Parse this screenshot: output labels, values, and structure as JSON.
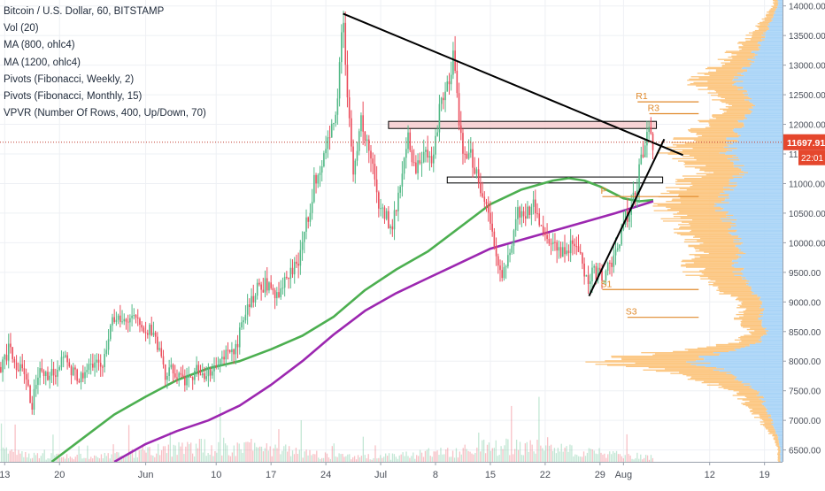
{
  "chart_data": {
    "type": "line",
    "title": "Bitcoin / U.S. Dollar, 60, BITSTAMP",
    "indicators": [
      "Vol (20)",
      "MA (800, ohlc4)",
      "MA (1200, ohlc4)",
      "Pivots (Fibonacci, Weekly, 2)",
      "Pivots (Fibonacci, Monthly, 15)",
      "VPVR (Number Of Rows, 400, Up/Down, 70)"
    ],
    "x_tick_labels": [
      {
        "label": "13",
        "day": -18
      },
      {
        "label": "20",
        "day": -11
      },
      {
        "label": "Jun",
        "day": 0
      },
      {
        "label": "10",
        "day": 9
      },
      {
        "label": "17",
        "day": 16
      },
      {
        "label": "24",
        "day": 23
      },
      {
        "label": "Jul",
        "day": 30
      },
      {
        "label": "8",
        "day": 37
      },
      {
        "label": "15",
        "day": 44
      },
      {
        "label": "22",
        "day": 51
      },
      {
        "label": "29",
        "day": 58
      },
      {
        "label": "Aug",
        "day": 61
      },
      {
        "label": "12",
        "day": 72
      },
      {
        "label": "19",
        "day": 79
      }
    ],
    "y_ticks": [
      6500,
      7000,
      7500,
      8000,
      8500,
      9000,
      9500,
      10000,
      10500,
      11000,
      11500,
      12000,
      12500,
      13000,
      13500,
      14000
    ],
    "ylim": [
      6300,
      14100
    ],
    "xlim_days": [
      -18.6,
      81.3
    ],
    "grid": true,
    "last_price": "11697.91",
    "countdown": "22:01",
    "price_series": [
      {
        "day": -18.5,
        "value": 7900
      },
      {
        "day": -17.5,
        "value": 8200
      },
      {
        "day": -16.5,
        "value": 7950
      },
      {
        "day": -15.5,
        "value": 7800
      },
      {
        "day": -14.5,
        "value": 7250
      },
      {
        "day": -13.5,
        "value": 7950
      },
      {
        "day": -12.5,
        "value": 7700
      },
      {
        "day": -11.5,
        "value": 7850
      },
      {
        "day": -10.5,
        "value": 8050
      },
      {
        "day": -9.5,
        "value": 7800
      },
      {
        "day": -8.5,
        "value": 7700
      },
      {
        "day": -7.5,
        "value": 7950
      },
      {
        "day": -6.5,
        "value": 8000
      },
      {
        "day": -5.5,
        "value": 7900
      },
      {
        "day": -4.5,
        "value": 8700
      },
      {
        "day": -3.5,
        "value": 8750
      },
      {
        "day": -2.5,
        "value": 8650
      },
      {
        "day": -1.5,
        "value": 8700
      },
      {
        "day": -0.5,
        "value": 8550
      },
      {
        "day": 0.5,
        "value": 8550
      },
      {
        "day": 1.5,
        "value": 8200
      },
      {
        "day": 2.5,
        "value": 7800
      },
      {
        "day": 3.5,
        "value": 7900
      },
      {
        "day": 4.5,
        "value": 7650
      },
      {
        "day": 5.5,
        "value": 7700
      },
      {
        "day": 6.5,
        "value": 7900
      },
      {
        "day": 7.5,
        "value": 7750
      },
      {
        "day": 8.5,
        "value": 7850
      },
      {
        "day": 9.5,
        "value": 8000
      },
      {
        "day": 10.5,
        "value": 8100
      },
      {
        "day": 11.5,
        "value": 8200
      },
      {
        "day": 12.5,
        "value": 8700
      },
      {
        "day": 13.5,
        "value": 9000
      },
      {
        "day": 14.5,
        "value": 9250
      },
      {
        "day": 15.5,
        "value": 9300
      },
      {
        "day": 16.5,
        "value": 9100
      },
      {
        "day": 17.5,
        "value": 9300
      },
      {
        "day": 18.5,
        "value": 9450
      },
      {
        "day": 19.5,
        "value": 9750
      },
      {
        "day": 20.5,
        "value": 10300
      },
      {
        "day": 21.5,
        "value": 11000
      },
      {
        "day": 22.5,
        "value": 11300
      },
      {
        "day": 23.5,
        "value": 11800
      },
      {
        "day": 24.5,
        "value": 12500
      },
      {
        "day": 25.2,
        "value": 13800
      },
      {
        "day": 25.8,
        "value": 12300
      },
      {
        "day": 26.5,
        "value": 11300
      },
      {
        "day": 27.5,
        "value": 12000
      },
      {
        "day": 28.5,
        "value": 11700
      },
      {
        "day": 29.5,
        "value": 10800
      },
      {
        "day": 30.5,
        "value": 10500
      },
      {
        "day": 31.5,
        "value": 10200
      },
      {
        "day": 32.5,
        "value": 11100
      },
      {
        "day": 33.5,
        "value": 11800
      },
      {
        "day": 34.5,
        "value": 11200
      },
      {
        "day": 35.5,
        "value": 11500
      },
      {
        "day": 36.5,
        "value": 11400
      },
      {
        "day": 37.5,
        "value": 12200
      },
      {
        "day": 38.5,
        "value": 12700
      },
      {
        "day": 39.3,
        "value": 13100
      },
      {
        "day": 40,
        "value": 12100
      },
      {
        "day": 40.8,
        "value": 11300
      },
      {
        "day": 41.5,
        "value": 11500
      },
      {
        "day": 42.5,
        "value": 11000
      },
      {
        "day": 43.5,
        "value": 10600
      },
      {
        "day": 44.2,
        "value": 10300
      },
      {
        "day": 44.8,
        "value": 9600
      },
      {
        "day": 45.5,
        "value": 9400
      },
      {
        "day": 46.5,
        "value": 9900
      },
      {
        "day": 47.5,
        "value": 10500
      },
      {
        "day": 48.5,
        "value": 10400
      },
      {
        "day": 49.5,
        "value": 10700
      },
      {
        "day": 50.5,
        "value": 10300
      },
      {
        "day": 51.5,
        "value": 10100
      },
      {
        "day": 52.5,
        "value": 9850
      },
      {
        "day": 53.5,
        "value": 9800
      },
      {
        "day": 54.5,
        "value": 9950
      },
      {
        "day": 55.5,
        "value": 9700
      },
      {
        "day": 56.5,
        "value": 9400
      },
      {
        "day": 57.5,
        "value": 9500
      },
      {
        "day": 58.5,
        "value": 9450
      },
      {
        "day": 59.5,
        "value": 9700
      },
      {
        "day": 60.5,
        "value": 10100
      },
      {
        "day": 61.5,
        "value": 10500
      },
      {
        "day": 62.5,
        "value": 10850
      },
      {
        "day": 63.5,
        "value": 11500
      },
      {
        "day": 64.2,
        "value": 11900
      },
      {
        "day": 64.8,
        "value": 11700
      }
    ],
    "ma_800": [
      {
        "day": -12,
        "value": 6300
      },
      {
        "day": -8,
        "value": 6700
      },
      {
        "day": -4,
        "value": 7100
      },
      {
        "day": 0,
        "value": 7400
      },
      {
        "day": 4,
        "value": 7680
      },
      {
        "day": 8,
        "value": 7880
      },
      {
        "day": 12,
        "value": 8000
      },
      {
        "day": 16,
        "value": 8200
      },
      {
        "day": 20,
        "value": 8430
      },
      {
        "day": 24,
        "value": 8750
      },
      {
        "day": 28,
        "value": 9200
      },
      {
        "day": 32,
        "value": 9550
      },
      {
        "day": 36,
        "value": 9850
      },
      {
        "day": 40,
        "value": 10250
      },
      {
        "day": 44,
        "value": 10650
      },
      {
        "day": 48,
        "value": 10900
      },
      {
        "day": 52,
        "value": 11050
      },
      {
        "day": 54,
        "value": 11090
      },
      {
        "day": 56,
        "value": 11050
      },
      {
        "day": 58,
        "value": 10950
      },
      {
        "day": 61,
        "value": 10750
      },
      {
        "day": 63,
        "value": 10700
      },
      {
        "day": 64.8,
        "value": 10720
      }
    ],
    "ma_1200": [
      {
        "day": -4,
        "value": 6300
      },
      {
        "day": 0,
        "value": 6600
      },
      {
        "day": 4,
        "value": 6820
      },
      {
        "day": 8,
        "value": 7000
      },
      {
        "day": 12,
        "value": 7250
      },
      {
        "day": 16,
        "value": 7600
      },
      {
        "day": 20,
        "value": 8000
      },
      {
        "day": 24,
        "value": 8450
      },
      {
        "day": 28,
        "value": 8850
      },
      {
        "day": 32,
        "value": 9150
      },
      {
        "day": 36,
        "value": 9400
      },
      {
        "day": 40,
        "value": 9650
      },
      {
        "day": 44,
        "value": 9900
      },
      {
        "day": 48,
        "value": 10050
      },
      {
        "day": 52,
        "value": 10200
      },
      {
        "day": 56,
        "value": 10350
      },
      {
        "day": 60,
        "value": 10500
      },
      {
        "day": 64.8,
        "value": 10700
      }
    ],
    "trendlines": [
      {
        "name": "descending-trendline",
        "from": {
          "day": 25.2,
          "value": 13870
        },
        "to": {
          "day": 68.6,
          "value": 11480
        }
      },
      {
        "name": "ascending-trendline",
        "from": {
          "day": 56.6,
          "value": 9100
        },
        "to": {
          "day": 66.2,
          "value": 11750
        }
      }
    ],
    "zones": [
      {
        "name": "upper-resistance-zone",
        "from_day": 31,
        "to_day": 65.2,
        "low": 11930,
        "high": 12050,
        "fill": "#f6c9cc"
      },
      {
        "name": "lower-support-zone",
        "from_day": 38.5,
        "to_day": 66,
        "low": 11010,
        "high": 11110,
        "fill": "#ffffff"
      }
    ],
    "pivot_levels": [
      {
        "label": "R1",
        "value": 12380,
        "from_day": 62.8,
        "to_day": 70.6
      },
      {
        "label": "R3",
        "value": 12180,
        "from_day": 64.3,
        "to_day": 70.6
      },
      {
        "label": "P",
        "value": 10780,
        "from_day": 58.3,
        "to_day": 70.6
      },
      {
        "label": "S1",
        "value": 9210,
        "from_day": 58.3,
        "to_day": 70.6
      },
      {
        "label": "S3",
        "value": 8740,
        "from_day": 61.5,
        "to_day": 70.6
      }
    ],
    "volume_profile_peaks": [
      {
        "price": 14000,
        "up": 0.02,
        "down": 0.02
      },
      {
        "price": 13500,
        "up": 0.08,
        "down": 0.06
      },
      {
        "price": 13000,
        "up": 0.15,
        "down": 0.13
      },
      {
        "price": 12700,
        "up": 0.2,
        "down": 0.18
      },
      {
        "price": 12300,
        "up": 0.13,
        "down": 0.11
      },
      {
        "price": 11900,
        "up": 0.2,
        "down": 0.18
      },
      {
        "price": 11500,
        "up": 0.24,
        "down": 0.24
      },
      {
        "price": 11200,
        "up": 0.17,
        "down": 0.17
      },
      {
        "price": 11000,
        "up": 0.22,
        "down": 0.22
      },
      {
        "price": 10600,
        "up": 0.27,
        "down": 0.24
      },
      {
        "price": 10300,
        "up": 0.22,
        "down": 0.22
      },
      {
        "price": 9900,
        "up": 0.18,
        "down": 0.18
      },
      {
        "price": 9500,
        "up": 0.2,
        "down": 0.2
      },
      {
        "price": 9200,
        "up": 0.14,
        "down": 0.15
      },
      {
        "price": 9000,
        "up": 0.08,
        "down": 0.08
      },
      {
        "price": 8750,
        "up": 0.1,
        "down": 0.1
      },
      {
        "price": 8500,
        "up": 0.07,
        "down": 0.07
      },
      {
        "price": 8300,
        "up": 0.1,
        "down": 0.1
      },
      {
        "price": 8000,
        "up": 0.4,
        "down": 0.42
      },
      {
        "price": 7800,
        "up": 0.24,
        "down": 0.24
      },
      {
        "price": 7500,
        "up": 0.11,
        "down": 0.1
      },
      {
        "price": 7200,
        "up": 0.07,
        "down": 0.07
      },
      {
        "price": 7000,
        "up": 0.05,
        "down": 0.05
      },
      {
        "price": 6700,
        "up": 0.02,
        "down": 0.02
      },
      {
        "price": 6500,
        "up": 0.01,
        "down": 0.01
      }
    ],
    "colors": {
      "candle_up": "#53b987",
      "candle_down": "#eb4d5c",
      "ma_800": "#4caf50",
      "ma_1200": "#9c27b0",
      "trendline": "#000000",
      "pivot": "#e08a2c",
      "vp_up": "#a9d4f7",
      "vp_down": "#fcc680",
      "last_price_line": "#c0392b",
      "last_price_bg": "#e5472d",
      "grid": "#eef0f4",
      "axis_text": "#4a4f59"
    }
  }
}
